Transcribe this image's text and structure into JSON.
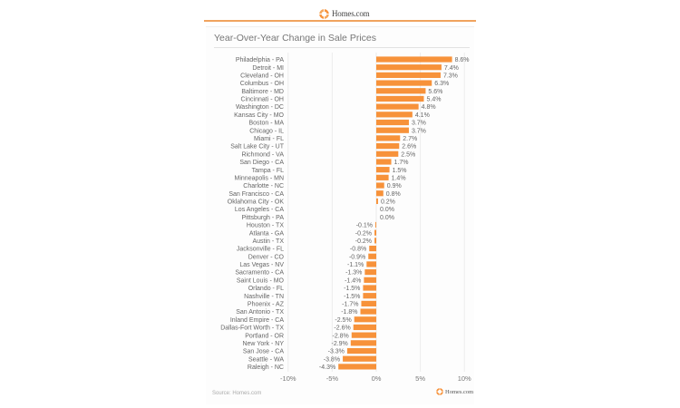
{
  "brand": {
    "name": "Homes.com",
    "accent_color": "#f7923a",
    "logo_icon": "homes-logo-ring-icon"
  },
  "footer": {
    "source": "Source: Homes.com",
    "logo_text": "Homes.com"
  },
  "chart_data": {
    "type": "bar",
    "orientation": "horizontal",
    "title": "Year-Over-Year Change in Sale Prices",
    "xlabel": "",
    "ylabel": "",
    "xlim": [
      -10,
      10
    ],
    "x_ticks": [
      "-10%",
      "-5%",
      "0%",
      "5%",
      "10%"
    ],
    "x_tick_values": [
      -10,
      -5,
      0,
      5,
      10
    ],
    "grid": "vertical",
    "legend": "none",
    "bar_color": "#f7923a",
    "categories": [
      "Philadelphia - PA",
      "Detroit - MI",
      "Cleveland - OH",
      "Columbus - OH",
      "Baltimore - MD",
      "Cincinnati - OH",
      "Washington - DC",
      "Kansas City - MO",
      "Boston - MA",
      "Chicago - IL",
      "Miami - FL",
      "Salt Lake City - UT",
      "Richmond - VA",
      "San Diego - CA",
      "Tampa - FL",
      "Minneapolis - MN",
      "Charlotte - NC",
      "San Francisco - CA",
      "Oklahoma City - OK",
      "Los Angeles - CA",
      "Pittsburgh - PA",
      "Houston - TX",
      "Atlanta - GA",
      "Austin - TX",
      "Jacksonville - FL",
      "Denver - CO",
      "Las Vegas - NV",
      "Sacramento - CA",
      "Saint Louis - MO",
      "Orlando - FL",
      "Nashville - TN",
      "Phoenix - AZ",
      "San Antonio - TX",
      "Inland Empire - CA",
      "Dallas-Fort Worth - TX",
      "Portland - OR",
      "New York - NY",
      "San Jose - CA",
      "Seattle - WA",
      "Raleigh - NC"
    ],
    "values": [
      8.6,
      7.4,
      7.3,
      6.3,
      5.6,
      5.4,
      4.8,
      4.1,
      3.7,
      3.7,
      2.7,
      2.6,
      2.5,
      1.7,
      1.5,
      1.4,
      0.9,
      0.8,
      0.2,
      0.0,
      0.0,
      -0.1,
      -0.2,
      -0.2,
      -0.8,
      -0.9,
      -1.1,
      -1.3,
      -1.4,
      -1.5,
      -1.5,
      -1.7,
      -1.8,
      -2.5,
      -2.6,
      -2.8,
      -2.9,
      -3.3,
      -3.8,
      -4.3
    ],
    "data_labels": [
      "8.6%",
      "7.4%",
      "7.3%",
      "6.3%",
      "5.6%",
      "5.4%",
      "4.8%",
      "4.1%",
      "3.7%",
      "3.7%",
      "2.7%",
      "2.6%",
      "2.5%",
      "1.7%",
      "1.5%",
      "1.4%",
      "0.9%",
      "0.8%",
      "0.2%",
      "0.0%",
      "0.0%",
      "-0.1%",
      "-0.2%",
      "-0.2%",
      "-0.8%",
      "-0.9%",
      "-1.1%",
      "-1.3%",
      "-1.4%",
      "-1.5%",
      "-1.5%",
      "-1.7%",
      "-1.8%",
      "-2.5%",
      "-2.6%",
      "-2.8%",
      "-2.9%",
      "-3.3%",
      "-3.8%",
      "-4.3%"
    ]
  }
}
